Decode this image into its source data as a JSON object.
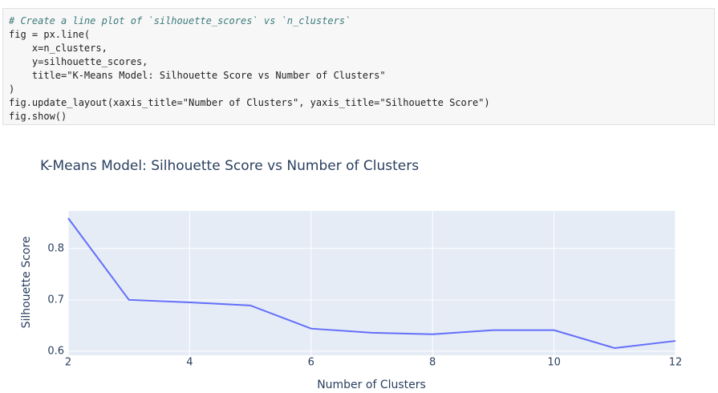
{
  "code": {
    "lines": [
      "# Create a line plot of `silhouette_scores` vs `n_clusters`",
      "fig = px.line(",
      "    x=n_clusters,",
      "    y=silhouette_scores,",
      "    title=\"K-Means Model: Silhouette Score vs Number of Clusters\"",
      ")",
      "fig.update_layout(xaxis_title=\"Number of Clusters\", yaxis_title=\"Silhouette Score\")",
      "fig.show()"
    ]
  },
  "chart_data": {
    "type": "line",
    "title": "K-Means Model: Silhouette Score vs Number of Clusters",
    "x_label": "Number of Clusters",
    "y_label": "Silhouette Score",
    "x": [
      2,
      3,
      4,
      5,
      6,
      7,
      8,
      9,
      10,
      11,
      12
    ],
    "values": [
      0.859,
      0.7,
      0.695,
      0.689,
      0.644,
      0.636,
      0.633,
      0.641,
      0.641,
      0.606,
      0.62
    ],
    "color": "#636efa",
    "xlim": [
      2,
      12
    ],
    "xticks": [
      2,
      4,
      6,
      8,
      10,
      12
    ],
    "ylim": [
      0.592,
      0.873
    ],
    "yticks": [
      0.6,
      0.7,
      0.8
    ],
    "grid": true
  }
}
